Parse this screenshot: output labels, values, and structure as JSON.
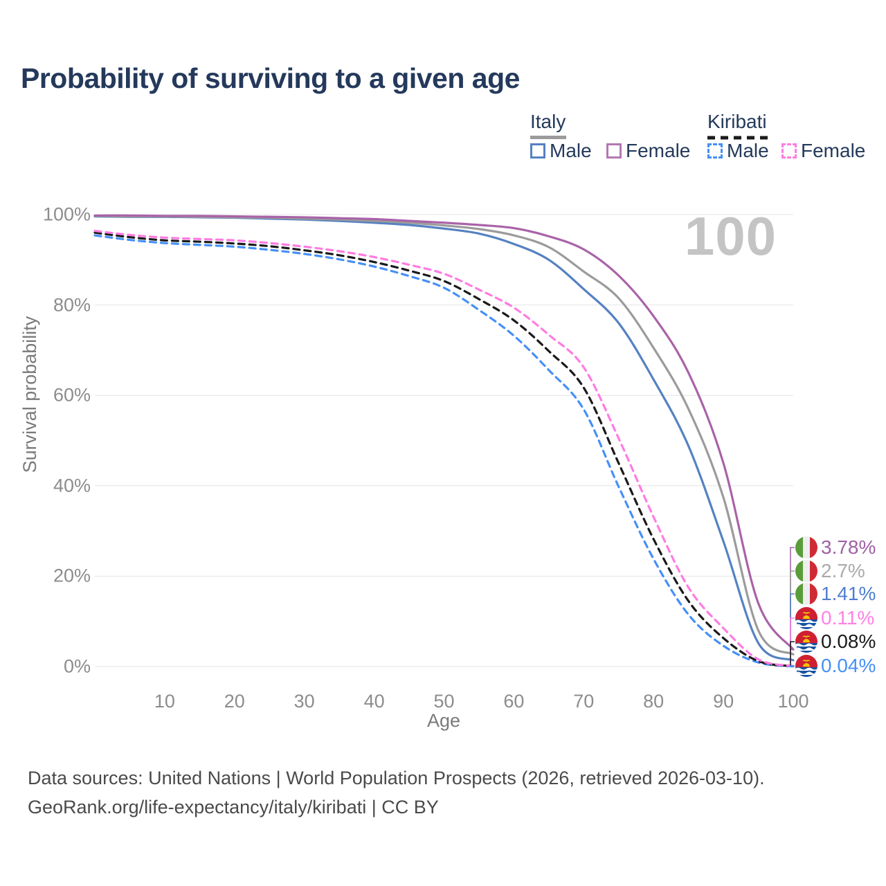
{
  "title": "Probability of surviving to a given age",
  "big_age_label": "100",
  "colors": {
    "italy_male": "#5581c2",
    "italy_female": "#a963a8",
    "italy_both": "#9b9b9b",
    "kiribati_male": "#4590f7",
    "kiribati_female": "#ff7ce1",
    "kiribati_both": "#1a1a1a",
    "grid": "#e4e4e4",
    "title_text": "#24395b",
    "axis_text": "#8c8c8c"
  },
  "legend": {
    "italy_label": "Italy",
    "kiribati_label": "Kiribati",
    "italy_male_label": "Male",
    "italy_female_label": "Female",
    "kiribati_male_label": "Male",
    "kiribati_female_label": "Female"
  },
  "chart_data": {
    "type": "line",
    "title": "Probability of surviving to a given age",
    "xlabel": "Age",
    "ylabel": "Survival probability",
    "xlim": [
      0,
      100
    ],
    "ylim": [
      0,
      100
    ],
    "xticks": [
      10,
      20,
      30,
      40,
      50,
      60,
      70,
      80,
      90,
      100
    ],
    "ytick_labels": [
      "0%",
      "20%",
      "40%",
      "60%",
      "80%",
      "100%"
    ],
    "grid": "horizontal-only",
    "legend_position": "top-right",
    "x": [
      0,
      5,
      10,
      15,
      20,
      25,
      30,
      35,
      40,
      45,
      50,
      55,
      60,
      65,
      70,
      75,
      80,
      85,
      90,
      95,
      100
    ],
    "series": [
      {
        "name": "Kiribati Male",
        "country": "kiribati",
        "sex": "male",
        "dashed": true,
        "color": "#4590f7",
        "values": [
          95.4,
          94.4,
          93.7,
          93.3,
          92.9,
          92.2,
          91.3,
          90.1,
          88.5,
          86.4,
          83.8,
          78.9,
          73.2,
          65.6,
          56.9,
          39.8,
          23.8,
          11.5,
          4.6,
          0.9,
          0.04
        ],
        "end_label": "0.04%",
        "end_label_color": "#4590f7",
        "flag": "kiribati"
      },
      {
        "name": "Kiribati Both sexes",
        "country": "kiribati",
        "sex": "both",
        "dashed": true,
        "color": "#1a1a1a",
        "values": [
          96.0,
          95.0,
          94.3,
          94.0,
          93.6,
          93.0,
          92.1,
          91.0,
          89.5,
          87.6,
          85.3,
          81.3,
          76.6,
          69.8,
          61.7,
          45.0,
          28.2,
          14.5,
          6.3,
          1.2,
          0.08
        ],
        "end_label": "0.08%",
        "end_label_color": "#1a1a1a",
        "flag": "kiribati"
      },
      {
        "name": "Kiribati Female",
        "country": "kiribati",
        "sex": "female",
        "dashed": true,
        "color": "#ff7ce1",
        "values": [
          96.4,
          95.5,
          94.9,
          94.6,
          94.3,
          93.7,
          92.9,
          91.9,
          90.6,
          88.9,
          86.9,
          83.4,
          79.4,
          73.4,
          66.2,
          50.5,
          33.1,
          17.5,
          8.5,
          1.6,
          0.11
        ],
        "end_label": "0.11%",
        "end_label_color": "#ff80e5",
        "flag": "kiribati"
      },
      {
        "name": "Italy Male",
        "country": "italy",
        "sex": "male",
        "dashed": false,
        "color": "#5581c2",
        "values": [
          99.6,
          99.5,
          99.5,
          99.4,
          99.3,
          99.1,
          98.9,
          98.6,
          98.2,
          97.7,
          96.9,
          95.8,
          93.5,
          90.0,
          83.5,
          76.0,
          63.5,
          48.8,
          27.7,
          5.2,
          1.41
        ],
        "end_label": "1.41%",
        "end_label_color": "#4f7fd0",
        "flag": "italy"
      },
      {
        "name": "Italy Both sexes",
        "country": "italy",
        "sex": "both",
        "dashed": false,
        "color": "#9b9b9b",
        "values": [
          99.7,
          99.6,
          99.6,
          99.5,
          99.4,
          99.3,
          99.1,
          98.9,
          98.6,
          98.2,
          97.6,
          96.8,
          95.4,
          92.8,
          87.4,
          81.5,
          70.5,
          57.0,
          37.4,
          8.0,
          2.7
        ],
        "end_label": "2.7%",
        "end_label_color": "#aaaaaa",
        "flag": "italy"
      },
      {
        "name": "Italy Female",
        "country": "italy",
        "sex": "female",
        "dashed": false,
        "color": "#a963a8",
        "values": [
          99.8,
          99.8,
          99.7,
          99.7,
          99.6,
          99.5,
          99.4,
          99.2,
          99.0,
          98.6,
          98.2,
          97.7,
          97.0,
          95.2,
          92.3,
          86.5,
          77.5,
          65.0,
          45.0,
          14.0,
          3.78
        ],
        "end_label": "3.78%",
        "end_label_color": "#a05fa3",
        "flag": "italy"
      }
    ],
    "end_label_order_top_to_bottom": [
      "3.78%",
      "2.7%",
      "1.41%",
      "0.11%",
      "0.08%",
      "0.04%"
    ],
    "annotation": "100"
  },
  "footer": {
    "line1": "Data sources: United Nations | World Population Prospects (2026, retrieved 2026-03-10).",
    "line2": "GeoRank.org/life-expectancy/italy/kiribati | CC BY"
  }
}
